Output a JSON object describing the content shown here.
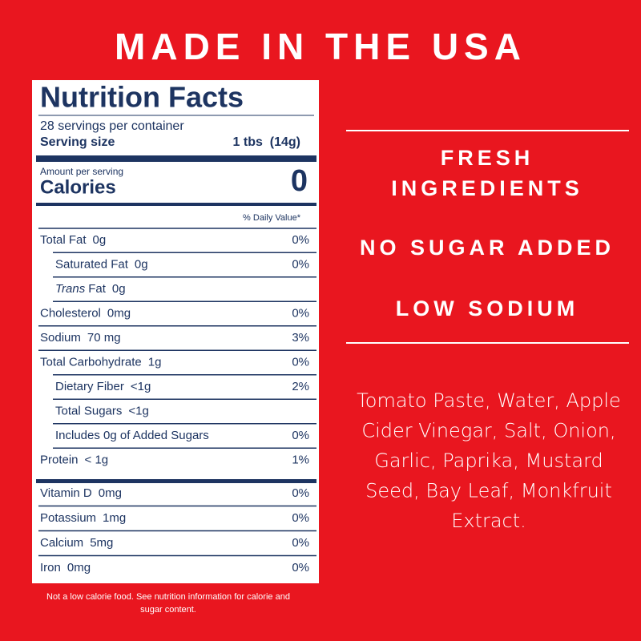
{
  "heading": "MADE IN THE USA",
  "nutrition": {
    "title": "Nutrition Facts",
    "servings": "28 servings per container",
    "serving_size_label": "Serving size",
    "serving_size": "1 tbs  (14g)",
    "amount_per_serving": "Amount per serving",
    "calories_label": "Calories",
    "calories": "0",
    "daily_value_header": "% Daily Value*",
    "nutrients": [
      {
        "label": "Total Fat",
        "amount": "0g",
        "dv": "0%"
      },
      {
        "label": "Saturated Fat",
        "amount": "0g",
        "dv": "0%",
        "indent": true
      },
      {
        "label_italic": "Trans",
        "label": "Fat",
        "amount": "0g",
        "indent": true
      },
      {
        "label": "Cholesterol",
        "amount": "0mg",
        "dv": "0%"
      },
      {
        "label": "Sodium",
        "amount": "70 mg",
        "dv": "3%"
      },
      {
        "label": "Total Carbohydrate",
        "amount": "1g",
        "dv": "0%"
      },
      {
        "label": "Dietary Fiber",
        "amount": "<1g",
        "dv": "2%",
        "indent": true
      },
      {
        "label": "Total Sugars",
        "amount": "<1g",
        "indent": true
      },
      {
        "label": "Includes 0g of Added Sugars",
        "dv": "0%",
        "indent": true
      },
      {
        "label": "Protein",
        "amount": "< 1g",
        "dv": "1%"
      }
    ],
    "vitamins": [
      {
        "label": "Vitamin D",
        "amount": "0mg",
        "dv": "0%"
      },
      {
        "label": "Potassium",
        "amount": "1mg",
        "dv": "0%"
      },
      {
        "label": "Calcium",
        "amount": "5mg",
        "dv": "0%"
      },
      {
        "label": "Iron",
        "amount": "0mg",
        "dv": "0%"
      }
    ]
  },
  "claims": [
    "FRESH",
    "INGREDIENTS",
    "NO SUGAR ADDED",
    "LOW SODIUM"
  ],
  "ingredients": [
    "Tomato Paste, Water, Apple",
    "Cider Vinegar, Salt, Onion,",
    "Garlic, Paprika, Mustard",
    "Seed, Bay Leaf, Monkfruit",
    "Extract."
  ],
  "footnote": [
    "Not a low calorie food. See nutrition information for calorie and",
    "sugar content."
  ]
}
